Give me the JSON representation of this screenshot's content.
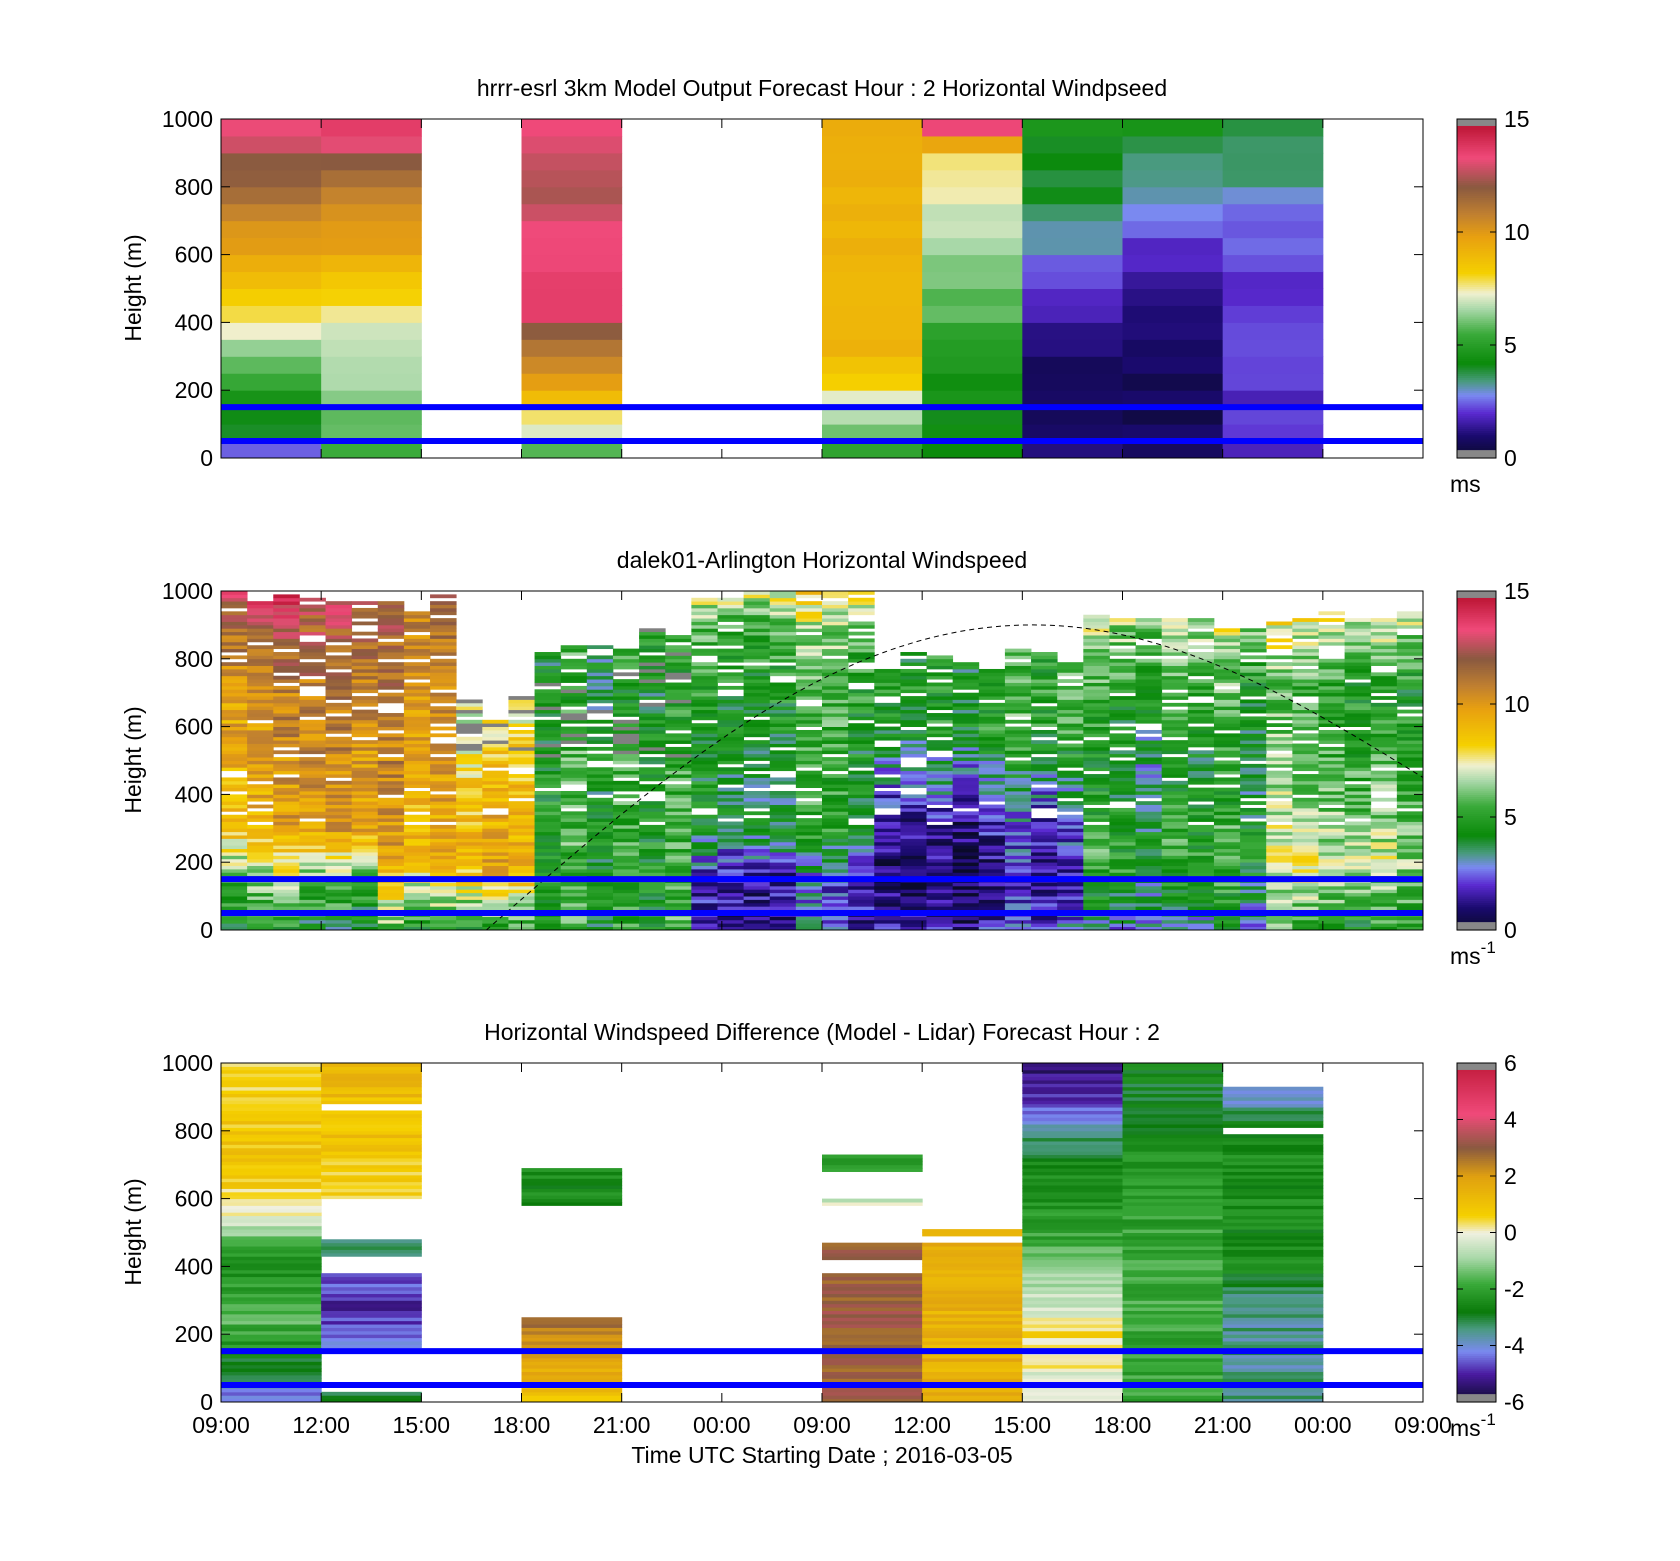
{
  "figure": {
    "x_tick_labels": [
      "09:00",
      "12:00",
      "15:00",
      "18:00",
      "21:00",
      "00:00",
      "09:00",
      "12:00",
      "15:00",
      "18:00",
      "21:00",
      "00:00",
      "09:00"
    ],
    "x_label": "Time UTC  Starting Date ; 2016-03-05",
    "reference_line_heights_m": [
      150,
      50
    ],
    "reference_line_color": "#0000ff"
  },
  "chart_data": [
    {
      "type": "heatmap",
      "title": "hrrr-esrl 3km Model Output   Forecast Hour : 2 Horizontal Windpseed",
      "ylabel": "Height (m)",
      "ylim": [
        0,
        1000
      ],
      "y_ticks": [
        "0",
        "200",
        "400",
        "600",
        "800",
        "1000"
      ],
      "colorbar": {
        "min": 0,
        "max": 15,
        "ticks": [
          "0",
          "5",
          "10",
          "15"
        ],
        "unit_label": "ms",
        "unit_sup": ""
      },
      "column_blocks": [
        {
          "time_index": 0,
          "profile": [
            [
              0,
              2
            ],
            [
              50,
              3.5
            ],
            [
              150,
              4.5
            ],
            [
              250,
              5.5
            ],
            [
              400,
              7.5
            ],
            [
              600,
              9.5
            ],
            [
              800,
              11.5
            ],
            [
              1000,
              13.5
            ]
          ]
        },
        {
          "time_index": 1,
          "profile": [
            [
              0,
              5
            ],
            [
              100,
              6
            ],
            [
              400,
              7
            ],
            [
              600,
              9.5
            ],
            [
              800,
              11
            ],
            [
              1000,
              14
            ]
          ]
        },
        {
          "time_index": 3,
          "profile": [
            [
              0,
              5
            ],
            [
              100,
              7.5
            ],
            [
              200,
              9.5
            ],
            [
              350,
              11.5
            ],
            [
              450,
              14
            ],
            [
              800,
              12.5
            ],
            [
              1000,
              13.5
            ]
          ]
        },
        {
          "time_index": 6,
          "profile": [
            [
              0,
              5
            ],
            [
              150,
              7
            ],
            [
              300,
              9
            ],
            [
              600,
              9
            ],
            [
              1000,
              9.5
            ]
          ]
        },
        {
          "time_index": 7,
          "profile": [
            [
              0,
              4
            ],
            [
              200,
              4.5
            ],
            [
              500,
              6
            ],
            [
              700,
              7
            ],
            [
              900,
              7.5
            ],
            [
              1000,
              15
            ]
          ]
        },
        {
          "time_index": 8,
          "profile": [
            [
              0,
              1
            ],
            [
              300,
              1
            ],
            [
              500,
              2
            ],
            [
              700,
              3.5
            ],
            [
              800,
              4
            ],
            [
              1000,
              4.5
            ]
          ]
        },
        {
          "time_index": 9,
          "profile": [
            [
              0,
              0.7
            ],
            [
              300,
              0.7
            ],
            [
              500,
              1.5
            ],
            [
              700,
              2.5
            ],
            [
              800,
              3.2
            ],
            [
              1000,
              4.5
            ]
          ]
        },
        {
          "time_index": 10,
          "profile": [
            [
              0,
              2
            ],
            [
              300,
              2
            ],
            [
              500,
              2
            ],
            [
              700,
              2.5
            ],
            [
              850,
              3.5
            ],
            [
              1000,
              3.8
            ]
          ]
        }
      ]
    },
    {
      "type": "heatmap",
      "title": "dalek01-Arlington  Horizontal Windspeed",
      "ylabel": "Height (m)",
      "ylim": [
        0,
        1000
      ],
      "y_ticks": [
        "0",
        "200",
        "400",
        "600",
        "800",
        "1000"
      ],
      "colorbar": {
        "min": 0,
        "max": 15,
        "ticks": [
          "0",
          "5",
          "10",
          "15"
        ],
        "unit_label": "ms",
        "unit_sup": "-1"
      },
      "columns": 46,
      "base_profile": [
        [
          0,
          3,
          [
            [
              0,
              4
            ],
            [
              150,
              6
            ],
            [
              300,
              9
            ],
            [
              700,
              10
            ],
            [
              1000,
              13
            ]
          ],
          1000
        ],
        [
          3,
          6,
          [
            [
              0,
              4
            ],
            [
              150,
              6
            ],
            [
              300,
              10
            ],
            [
              700,
              11
            ],
            [
              1000,
              12.5
            ]
          ],
          1000
        ],
        [
          6,
          9,
          [
            [
              0,
              5
            ],
            [
              200,
              9
            ],
            [
              500,
              10
            ],
            [
              900,
              11
            ],
            [
              1000,
              12
            ]
          ],
          950
        ],
        [
          9,
          12,
          [
            [
              0,
              5
            ],
            [
              200,
              10
            ],
            [
              600,
              8
            ],
            [
              900,
              7
            ],
            [
              1000,
              6
            ]
          ],
          650
        ],
        [
          12,
          18,
          [
            [
              0,
              5
            ],
            [
              200,
              5
            ],
            [
              500,
              5
            ],
            [
              700,
              4.5
            ],
            [
              900,
              5
            ]
          ],
          850
        ],
        [
          18,
          25,
          [
            [
              0,
              2
            ],
            [
              150,
              2
            ],
            [
              300,
              4.5
            ],
            [
              600,
              5
            ],
            [
              900,
              6
            ],
            [
              1000,
              8
            ]
          ],
          1000
        ],
        [
          25,
          33,
          [
            [
              0,
              2
            ],
            [
              150,
              1
            ],
            [
              350,
              2
            ],
            [
              600,
              5
            ],
            [
              800,
              5
            ],
            [
              1000,
              9
            ]
          ],
          800
        ],
        [
          33,
          40,
          [
            [
              0,
              3
            ],
            [
              200,
              5
            ],
            [
              500,
              4
            ],
            [
              700,
              5
            ],
            [
              900,
              6.5
            ],
            [
              1000,
              8
            ]
          ],
          900
        ],
        [
          40,
          46,
          [
            [
              0,
              5
            ],
            [
              200,
              7
            ],
            [
              400,
              6
            ],
            [
              700,
              5
            ],
            [
              900,
              7
            ],
            [
              1000,
              9
            ]
          ],
          900
        ]
      ],
      "dashed_curve": {
        "start_time_index": 2.65,
        "peak_time_index": 8.1,
        "peak_height_m": 900,
        "end_time_index": 12,
        "end_height_m": 450
      }
    },
    {
      "type": "heatmap",
      "title": "Horizontal Windspeed Difference (Model - Lidar) Forecast Hour : 2",
      "ylabel": "Height (m)",
      "ylim": [
        0,
        1000
      ],
      "y_ticks": [
        "0",
        "200",
        "400",
        "600",
        "800",
        "1000"
      ],
      "colorbar": {
        "min": -6,
        "max": 6,
        "ticks": [
          "-6",
          "-4",
          "-2",
          "0",
          "2",
          "4",
          "6"
        ],
        "unit_label": "ms",
        "unit_sup": "-1"
      },
      "column_blocks": [
        {
          "time_index": 0,
          "ranges": [
            [
              0,
              1000
            ]
          ],
          "profile": [
            [
              0,
              -4.5
            ],
            [
              100,
              -3
            ],
            [
              250,
              -1.5
            ],
            [
              400,
              -2.5
            ],
            [
              500,
              -1
            ],
            [
              550,
              0
            ],
            [
              700,
              1
            ],
            [
              1000,
              0.5
            ]
          ]
        },
        {
          "time_index": 1,
          "ranges": [
            [
              0,
              30
            ],
            [
              160,
              380
            ],
            [
              430,
              480
            ],
            [
              600,
              860
            ],
            [
              880,
              1000
            ]
          ],
          "profile": [
            [
              0,
              -3
            ],
            [
              200,
              -4.5
            ],
            [
              300,
              -5
            ],
            [
              400,
              -4
            ],
            [
              480,
              -3
            ],
            [
              600,
              0.5
            ],
            [
              800,
              1
            ],
            [
              1000,
              1.3
            ]
          ]
        },
        {
          "time_index": 3,
          "ranges": [
            [
              0,
              250
            ],
            [
              580,
              690
            ]
          ],
          "profile": [
            [
              0,
              1
            ],
            [
              200,
              2.5
            ],
            [
              250,
              3
            ],
            [
              580,
              -2.5
            ],
            [
              690,
              -2.5
            ]
          ]
        },
        {
          "time_index": 6,
          "ranges": [
            [
              0,
              380
            ],
            [
              420,
              470
            ],
            [
              580,
              600
            ],
            [
              680,
              730
            ]
          ],
          "profile": [
            [
              0,
              3
            ],
            [
              380,
              3
            ],
            [
              470,
              3
            ],
            [
              590,
              -0.5
            ],
            [
              700,
              -2
            ]
          ]
        },
        {
          "time_index": 7,
          "ranges": [
            [
              0,
              470
            ],
            [
              490,
              510
            ]
          ],
          "profile": [
            [
              0,
              1.5
            ],
            [
              470,
              1.5
            ],
            [
              510,
              1.2
            ]
          ]
        },
        {
          "time_index": 8,
          "ranges": [
            [
              0,
              1000
            ]
          ],
          "profile": [
            [
              0,
              -0.5
            ],
            [
              200,
              0.5
            ],
            [
              300,
              -0.5
            ],
            [
              500,
              -2
            ],
            [
              700,
              -2.5
            ],
            [
              900,
              -5
            ],
            [
              1000,
              -5.5
            ]
          ]
        },
        {
          "time_index": 9,
          "ranges": [
            [
              0,
              1000
            ]
          ],
          "profile": [
            [
              0,
              -2
            ],
            [
              400,
              -1.8
            ],
            [
              700,
              -2.2
            ],
            [
              900,
              -3
            ],
            [
              1000,
              -2.5
            ]
          ]
        },
        {
          "time_index": 10,
          "ranges": [
            [
              0,
              790
            ],
            [
              810,
              930
            ]
          ],
          "profile": [
            [
              0,
              -3.5
            ],
            [
              300,
              -3.5
            ],
            [
              400,
              -2.5
            ],
            [
              700,
              -2.5
            ],
            [
              800,
              -2.5
            ],
            [
              900,
              -4
            ]
          ]
        }
      ]
    }
  ]
}
